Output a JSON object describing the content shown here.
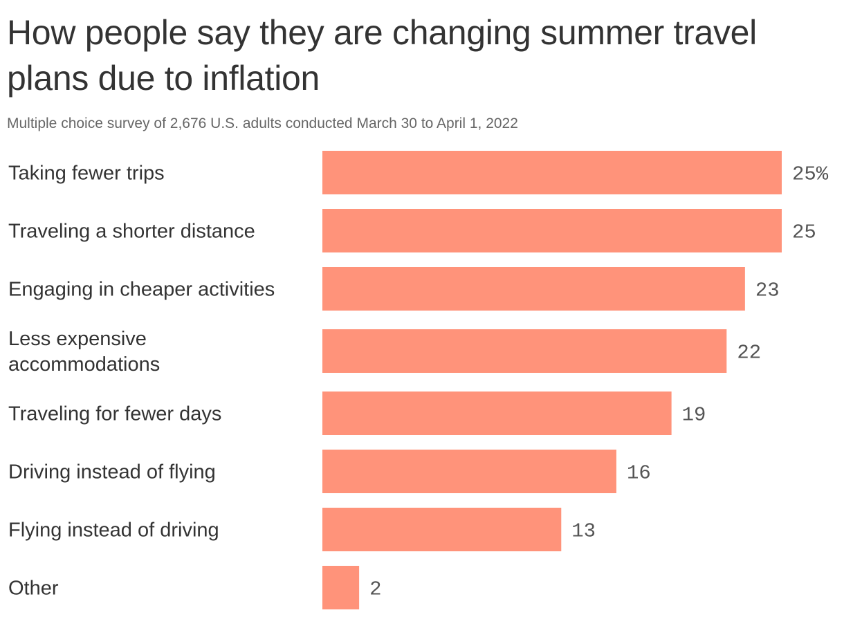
{
  "header": {
    "title": "How people say they are changing summer travel plans due to inflation",
    "subtitle": "Multiple choice survey of 2,676 U.S. adults conducted March 30 to April 1, 2022"
  },
  "colors": {
    "bar": "#ff937a",
    "text": "#333333",
    "value_text": "#555555"
  },
  "chart_data": {
    "type": "bar",
    "orientation": "horizontal",
    "title": "How people say they are changing summer travel plans due to inflation",
    "subtitle": "Multiple choice survey of 2,676 U.S. adults conducted March 30 to April 1, 2022",
    "categories": [
      [
        "Taking fewer trips"
      ],
      [
        "Traveling a shorter distance"
      ],
      [
        "Engaging in cheaper activities"
      ],
      [
        "Less expensive",
        "accommodations"
      ],
      [
        "Traveling for fewer days"
      ],
      [
        "Driving instead of flying"
      ],
      [
        "Flying instead of driving"
      ],
      [
        "Other"
      ]
    ],
    "values": [
      25,
      25,
      23,
      22,
      19,
      16,
      13,
      2
    ],
    "value_labels": [
      "25%",
      "25",
      "23",
      "22",
      "19",
      "16",
      "13",
      "2"
    ],
    "unit": "%",
    "xlim": [
      0,
      25
    ],
    "xlabel": "",
    "ylabel": "",
    "grid": false,
    "legend": "none"
  }
}
